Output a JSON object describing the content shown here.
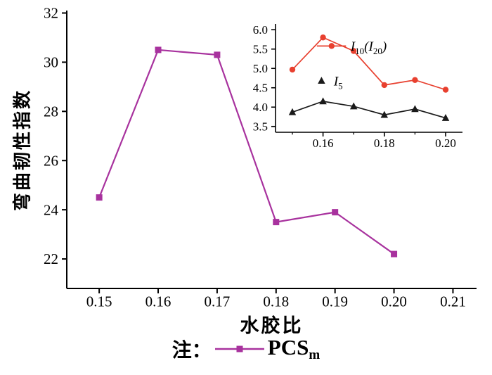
{
  "figure": {
    "background": "#ffffff",
    "note_prefix": "注：",
    "legend_series": "PCS",
    "legend_series_sub": "m",
    "accent_color": "#a8329e"
  },
  "chart_data": [
    {
      "id": "main",
      "type": "line",
      "title": "",
      "xlabel": "水胶比",
      "ylabel": "弯曲韧性指数",
      "xlim": [
        0.1445,
        0.214
      ],
      "ylim": [
        20.8,
        32.1
      ],
      "grid": false,
      "legend_position": "bottom-outside",
      "xticks": [
        0.15,
        0.16,
        0.17,
        0.18,
        0.19,
        0.2,
        0.21
      ],
      "xtick_labels": [
        "0.15",
        "0.16",
        "0.17",
        "0.18",
        "0.19",
        "0.20",
        "0.21"
      ],
      "yticks": [
        22,
        24,
        26,
        28,
        30,
        32
      ],
      "ytick_labels": [
        "22",
        "24",
        "26",
        "28",
        "30",
        "32"
      ],
      "x": [
        0.15,
        0.16,
        0.17,
        0.18,
        0.19,
        0.2
      ],
      "series": [
        {
          "name": "PCSm",
          "color": "#a8329e",
          "marker": "square",
          "values": [
            24.5,
            30.5,
            30.3,
            23.5,
            23.9,
            22.2
          ]
        }
      ]
    },
    {
      "id": "inset",
      "type": "line",
      "title": "",
      "xlabel": "",
      "ylabel": "",
      "xlim": [
        0.1445,
        0.2055
      ],
      "ylim": [
        3.35,
        6.15
      ],
      "grid": false,
      "legend_position": "inside",
      "xticks": [
        0.16,
        0.18,
        0.2
      ],
      "xtick_labels": [
        "0.16",
        "0.18",
        "0.20"
      ],
      "xminor": [
        0.15,
        0.17,
        0.19
      ],
      "yticks": [
        3.5,
        4.0,
        4.5,
        5.0,
        5.5,
        6.0
      ],
      "ytick_labels": [
        "3.5",
        "4.0",
        "4.5",
        "5.0",
        "5.5",
        "6.0"
      ],
      "x": [
        0.15,
        0.16,
        0.17,
        0.18,
        0.19,
        0.2
      ],
      "series": [
        {
          "name": "I10(I20)",
          "color": "#e8402f",
          "marker": "circle",
          "values": [
            4.97,
            5.8,
            5.45,
            4.57,
            4.7,
            4.45
          ]
        },
        {
          "name": "I5",
          "color": "#1a1a1a",
          "marker": "triangle",
          "values": [
            3.87,
            4.15,
            4.02,
            3.8,
            3.95,
            3.72
          ]
        }
      ],
      "annotations": [
        {
          "name": "inset-legend-i10-i20",
          "marker": "circle",
          "color": "#e8402f",
          "line": [
            0.158,
            0.1675
          ],
          "x": 0.1628,
          "y": 5.58,
          "text_x": 0.169,
          "parts": [
            [
              "I",
              0
            ],
            [
              "10",
              1
            ],
            [
              "(",
              0
            ],
            [
              "I",
              0
            ],
            [
              "20",
              1
            ],
            [
              ")",
              0
            ]
          ]
        },
        {
          "name": "inset-legend-i5",
          "marker": "triangle",
          "color": "#1a1a1a",
          "x": 0.1595,
          "y": 4.68,
          "text_x": 0.1635,
          "parts": [
            [
              "I",
              0
            ],
            [
              "5",
              1
            ]
          ]
        }
      ]
    }
  ]
}
